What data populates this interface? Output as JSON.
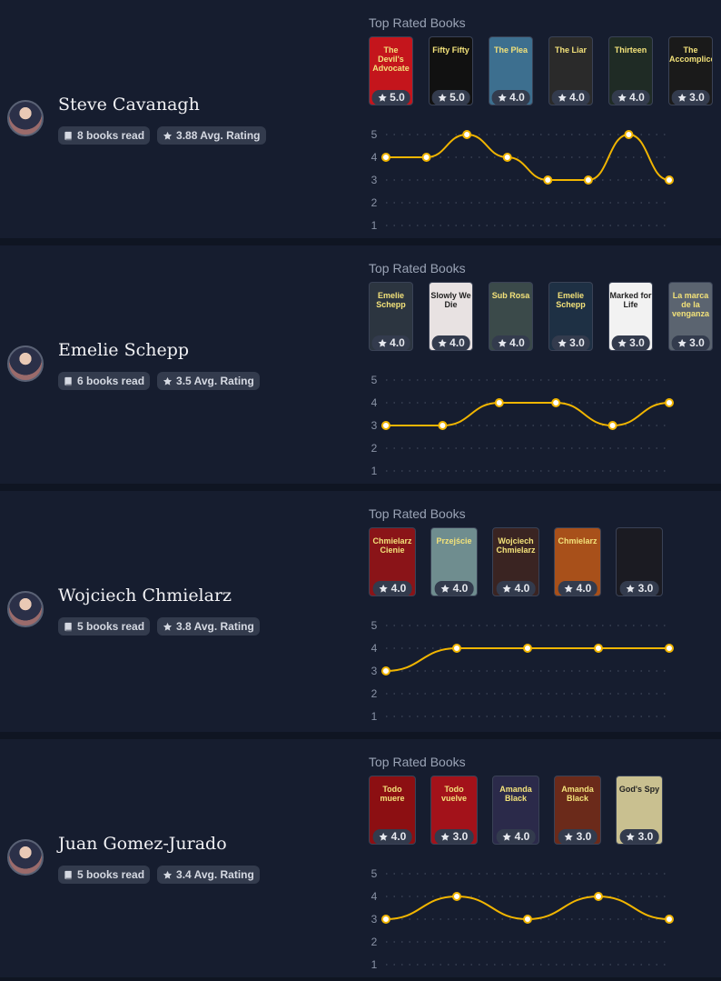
{
  "accent": "#f1b500",
  "top_rated_label": "Top Rated Books",
  "authors": [
    {
      "name": "Steve Cavanagh",
      "books_read": "8 books read",
      "avg_rating": "3.88 Avg. Rating",
      "books": [
        {
          "title": "The Devil's Advocate",
          "rating": "5.0",
          "color": "#c4151c"
        },
        {
          "title": "Fifty Fifty",
          "rating": "5.0",
          "color": "#111"
        },
        {
          "title": "The Plea",
          "rating": "4.0",
          "color": "#3d6f8f"
        },
        {
          "title": "The Liar",
          "rating": "4.0",
          "color": "#2a2a2a"
        },
        {
          "title": "Thirteen",
          "rating": "4.0",
          "color": "#1f2b25"
        },
        {
          "title": "The Accomplice",
          "rating": "3.0",
          "color": "#1a1a1a"
        }
      ],
      "chart_data": {
        "type": "line",
        "yticks": [
          1,
          2,
          3,
          4,
          5
        ],
        "ylim": [
          1,
          5
        ],
        "values": [
          4,
          4,
          5,
          4,
          3,
          3,
          5,
          3
        ]
      }
    },
    {
      "name": "Emelie Schepp",
      "books_read": "6 books read",
      "avg_rating": "3.5 Avg. Rating",
      "books": [
        {
          "title": "Emelie Schepp",
          "rating": "4.0",
          "color": "#2c3540"
        },
        {
          "title": "Slowly We Die",
          "rating": "4.0",
          "color": "#e8e2e2"
        },
        {
          "title": "Sub Rosa",
          "rating": "4.0",
          "color": "#3b4a4a"
        },
        {
          "title": "Emelie Schepp",
          "rating": "3.0",
          "color": "#1e3044"
        },
        {
          "title": "Marked for Life",
          "rating": "3.0",
          "color": "#f2f2f2"
        },
        {
          "title": "La marca de la venganza",
          "rating": "3.0",
          "color": "#5b6470"
        }
      ],
      "chart_data": {
        "type": "line",
        "yticks": [
          1,
          2,
          3,
          4,
          5
        ],
        "ylim": [
          1,
          5
        ],
        "values": [
          3,
          3,
          4,
          4,
          3,
          4
        ]
      }
    },
    {
      "name": "Wojciech Chmielarz",
      "books_read": "5 books read",
      "avg_rating": "3.8 Avg. Rating",
      "books": [
        {
          "title": "Chmielarz Cienie",
          "rating": "4.0",
          "color": "#8a1418"
        },
        {
          "title": "Przejście",
          "rating": "4.0",
          "color": "#6f8d8f"
        },
        {
          "title": "Wojciech Chmielarz",
          "rating": "4.0",
          "color": "#3a2422"
        },
        {
          "title": "Chmielarz",
          "rating": "4.0",
          "color": "#a8501a"
        },
        {
          "title": "",
          "rating": "3.0",
          "color": "#1b1b22"
        }
      ],
      "chart_data": {
        "type": "line",
        "yticks": [
          1,
          2,
          3,
          4,
          5
        ],
        "ylim": [
          1,
          5
        ],
        "values": [
          3,
          4,
          4,
          4,
          4
        ]
      }
    },
    {
      "name": "Juan Gomez-Jurado",
      "books_read": "5 books read",
      "avg_rating": "3.4 Avg. Rating",
      "books": [
        {
          "title": "Todo muere",
          "rating": "4.0",
          "color": "#8c0f12"
        },
        {
          "title": "Todo vuelve",
          "rating": "3.0",
          "color": "#a3121a"
        },
        {
          "title": "Amanda Black",
          "rating": "4.0",
          "color": "#2b2a4a"
        },
        {
          "title": "Amanda Black",
          "rating": "3.0",
          "color": "#6b2a1a"
        },
        {
          "title": "God's Spy",
          "rating": "3.0",
          "color": "#c9c090"
        }
      ],
      "chart_data": {
        "type": "line",
        "yticks": [
          1,
          2,
          3,
          4,
          5
        ],
        "ylim": [
          1,
          5
        ],
        "values": [
          3,
          4,
          3,
          4,
          3
        ]
      }
    }
  ]
}
